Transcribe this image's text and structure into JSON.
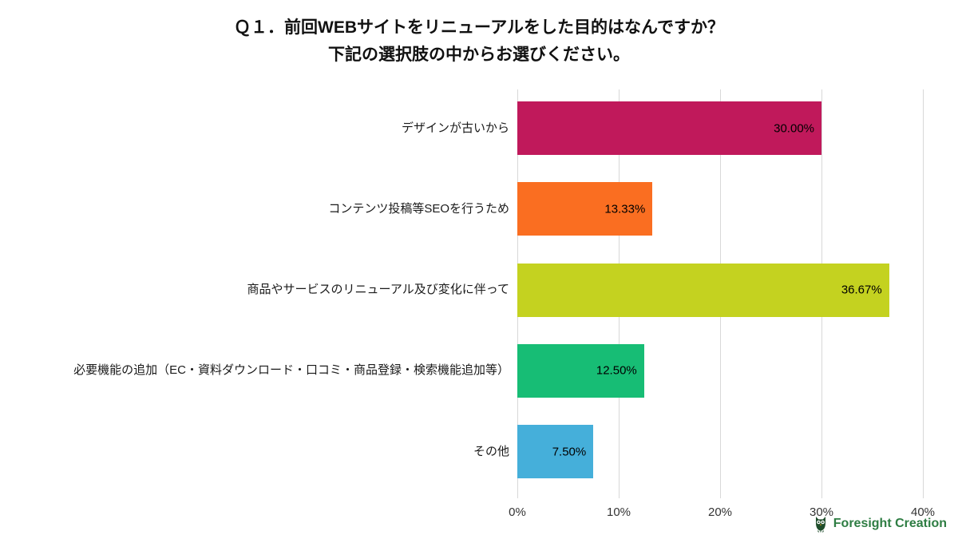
{
  "title": {
    "line1": "Ｑ１．前回WEBサイトをリニューアルをした目的はなんですか？",
    "line2": "下記の選択肢の中からお選びください。"
  },
  "chart_data": {
    "type": "bar",
    "orientation": "horizontal",
    "title": "Ｑ１．前回WEBサイトをリニューアルをした目的はなんですか？ 下記の選択肢の中からお選びください。",
    "categories": [
      "デザインが古いから",
      "コンテンツ投稿等SEOを行うため",
      "商品やサービスのリニューアル及び変化に伴って",
      "必要機能の追加（EC・資料ダウンロード・口コミ・商品登録・検索機能追加等）",
      "その他"
    ],
    "values": [
      30.0,
      13.33,
      36.67,
      12.5,
      7.5
    ],
    "value_labels": [
      "30.00%",
      "13.33%",
      "36.67%",
      "12.50%",
      "7.50%"
    ],
    "bar_colors": [
      "#C0195B",
      "#FA6E21",
      "#C4D220",
      "#17BD75",
      "#45AFDA"
    ],
    "xlim": [
      0,
      40
    ],
    "x_ticks": [
      {
        "value": 0,
        "label": "0%"
      },
      {
        "value": 10,
        "label": "10%"
      },
      {
        "value": 20,
        "label": "20%"
      },
      {
        "value": 30,
        "label": "30%"
      },
      {
        "value": 40,
        "label": "40%"
      }
    ],
    "grid": true,
    "legend": false,
    "gridline_color": "#d8d8d8"
  },
  "footer": {
    "brand": "Foresight Creation",
    "brand_color": "#2E7D43",
    "logo_icon": "owl-icon"
  }
}
